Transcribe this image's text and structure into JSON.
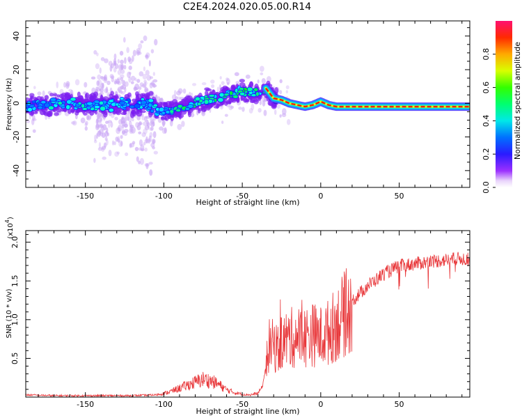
{
  "title": "C2E4.2024.020.05.00.R14",
  "colors": {
    "snr_line": "#e8373a",
    "spectrogram_low": "#9b30ff",
    "spectrogram_high": "#ff0000"
  },
  "chart_data": [
    {
      "type": "heatmap",
      "name_hint": "spectrogram",
      "xlabel": "Height of straight line (km)",
      "ylabel": "Frequency (Hz)",
      "xlim": [
        -188,
        95
      ],
      "ylim": [
        -50,
        49
      ],
      "xticks": [
        -150,
        -100,
        -50,
        0,
        50
      ],
      "yticks": [
        -40,
        -20,
        0,
        20,
        40
      ],
      "xtick_labels": [
        "-150",
        "-100",
        "-50",
        "0",
        "50"
      ],
      "ytick_labels": [
        "-40",
        "-20",
        "0",
        "20",
        "40"
      ],
      "colorbar": {
        "label": "Normalized spectral amplitude",
        "range": [
          0,
          1
        ],
        "ticks": [
          0.0,
          0.2,
          0.4,
          0.6,
          0.8
        ],
        "tick_labels": [
          "0.0",
          "0.2",
          "0.4",
          "0.6",
          "0.8"
        ]
      },
      "ridge": {
        "x": [
          -188,
          -170,
          -150,
          -130,
          -110,
          -100,
          -90,
          -80,
          -70,
          -60,
          -50,
          -40,
          -35,
          -30,
          -25,
          -20,
          -15,
          -10,
          -5,
          0,
          5,
          10,
          20,
          40,
          60,
          80,
          95
        ],
        "freq": [
          -2,
          0,
          -1,
          -1,
          0,
          -5,
          -3,
          0,
          2,
          5,
          7,
          6,
          9,
          3,
          2,
          0,
          -1,
          -2,
          -1,
          1,
          -1,
          -2,
          -2,
          -2,
          -2,
          -2,
          -2
        ],
        "amplitude": [
          0.35,
          0.4,
          0.4,
          0.35,
          0.35,
          0.4,
          0.45,
          0.5,
          0.5,
          0.5,
          0.5,
          0.5,
          0.6,
          0.95,
          0.9,
          0.8,
          0.75,
          0.8,
          0.7,
          0.7,
          0.75,
          0.8,
          0.75,
          0.75,
          0.8,
          0.9,
          0.95
        ]
      }
    },
    {
      "type": "line",
      "name_hint": "snr",
      "xlabel": "Height of straight line (km)",
      "ylabel": "SNR (10 * v/v)",
      "scale_label": "(x10",
      "scale_exp": "4",
      "scale_close": ")",
      "xlim": [
        -188,
        95
      ],
      "ylim": [
        0,
        2.15
      ],
      "xticks": [
        -150,
        -100,
        -50,
        0,
        50
      ],
      "yticks": [
        0.5,
        1.0,
        1.5,
        2.0
      ],
      "xtick_labels": [
        "-150",
        "-100",
        "-50",
        "0",
        "50"
      ],
      "ytick_labels": [
        "0.5",
        "1.0",
        "1.5",
        "2.0"
      ],
      "envelope": {
        "x": [
          -188,
          -170,
          -150,
          -120,
          -105,
          -100,
          -95,
          -90,
          -85,
          -80,
          -75,
          -70,
          -65,
          -60,
          -55,
          -50,
          -45,
          -40,
          -37,
          -35,
          -33,
          -30,
          -27,
          -25,
          -20,
          -15,
          -10,
          -5,
          0,
          5,
          10,
          15,
          20,
          25,
          30,
          35,
          40,
          50,
          60,
          70,
          80,
          90,
          95
        ],
        "y": [
          0.03,
          0.02,
          0.02,
          0.02,
          0.03,
          0.05,
          0.08,
          0.12,
          0.16,
          0.2,
          0.24,
          0.22,
          0.17,
          0.1,
          0.06,
          0.04,
          0.03,
          0.05,
          0.15,
          0.4,
          0.7,
          0.7,
          0.65,
          0.75,
          0.8,
          0.82,
          0.82,
          0.85,
          0.82,
          0.88,
          1.0,
          1.12,
          1.25,
          1.35,
          1.45,
          1.52,
          1.6,
          1.7,
          1.73,
          1.76,
          1.78,
          1.8,
          1.78
        ]
      }
    }
  ]
}
